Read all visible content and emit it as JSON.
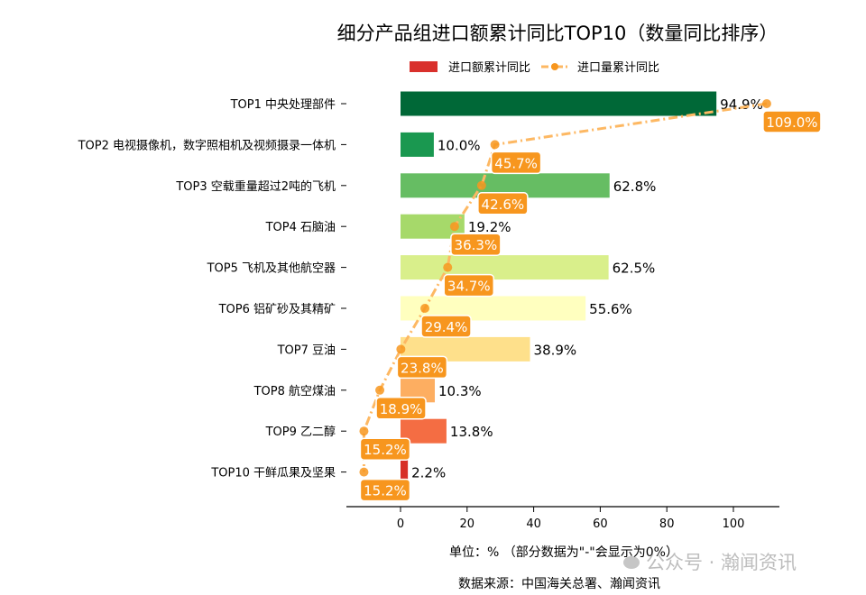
{
  "chart_data": {
    "type": "bar",
    "orientation": "horizontal",
    "title": "细分产品组进口额累计同比TOP10（数量同比排序）",
    "categories": [
      "TOP1 中央处理部件",
      "TOP2 电视摄像机，数字照相机及视频摄录一体机",
      "TOP3 空载重量超过2吨的飞机",
      "TOP4 石脑油",
      "TOP5 飞机及其他航空器",
      "TOP6 铝矿砂及其精矿",
      "TOP7 豆油",
      "TOP8 航空煤油",
      "TOP9 乙二醇",
      "TOP10 干鲜瓜果及坚果"
    ],
    "series": [
      {
        "name": "进口额累计同比",
        "type": "bar",
        "values": [
          94.9,
          10.0,
          62.8,
          19.2,
          62.5,
          55.6,
          38.9,
          10.3,
          13.8,
          2.2
        ],
        "labels": [
          "94.9%",
          "10.0%",
          "62.8%",
          "19.2%",
          "62.5%",
          "55.6%",
          "38.9%",
          "10.3%",
          "13.8%",
          "2.2%"
        ],
        "colors": [
          "#006837",
          "#1a9850",
          "#66bd63",
          "#a6d96a",
          "#d9ef8b",
          "#ffffbf",
          "#fee08b",
          "#fdae61",
          "#f46d43",
          "#d73027"
        ]
      },
      {
        "name": "进口量累计同比",
        "type": "line",
        "style": "dash-dot",
        "values": [
          109.0,
          45.7,
          42.6,
          36.3,
          34.7,
          29.4,
          23.8,
          18.9,
          15.2,
          15.2
        ],
        "labels": [
          "109.0%",
          "45.7%",
          "42.6%",
          "36.3%",
          "34.7%",
          "29.4%",
          "23.8%",
          "18.9%",
          "15.2%",
          "15.2%"
        ],
        "color": "#fdb863",
        "label_color": "#f7961e"
      }
    ],
    "xticks": [
      "0",
      "20",
      "40",
      "60",
      "80",
      "100"
    ],
    "xlim": [
      -16,
      114
    ],
    "xlabel": "单位：%  （部分数据为\"-\"会显示为0%）",
    "legend_placement": "top-center",
    "legend_patch_color": "#d9302c",
    "grid": false,
    "source": "数据来源：中国海关总署、瀚闻资讯",
    "watermark": "公众号 · 瀚闻资讯"
  }
}
